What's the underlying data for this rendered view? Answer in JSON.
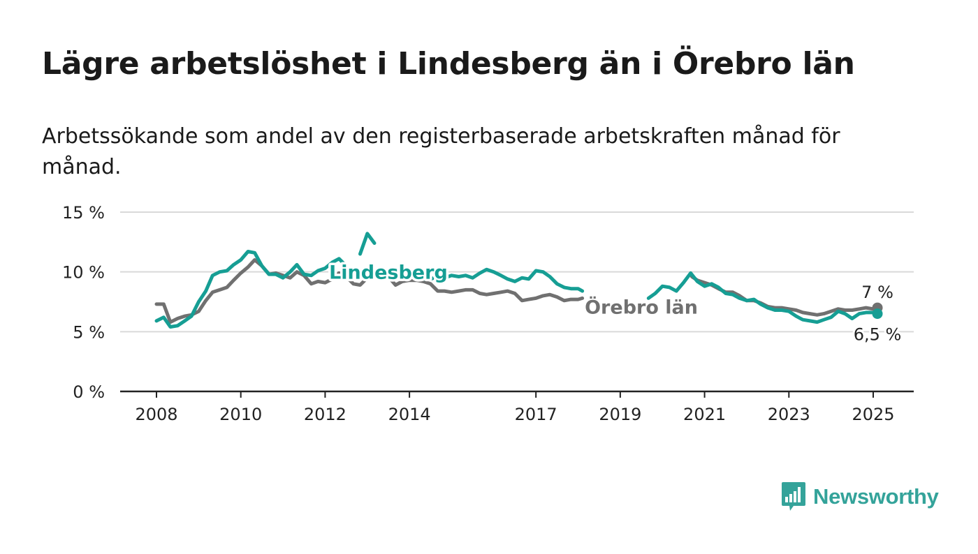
{
  "header": {
    "title": "Lägre arbetslöshet i Lindesberg än i Örebro län",
    "subtitle": "Arbetssökande som andel av den registerbaserade arbetskraften månad för månad."
  },
  "brand": {
    "name": "Newsworthy",
    "icon": "bar-chart-speech-bubble-icon",
    "color": "#34a39a"
  },
  "chart_data": {
    "type": "line",
    "ylim": [
      0,
      15
    ],
    "yticks": [
      0,
      5,
      10,
      15
    ],
    "ytick_labels": [
      "0 %",
      "5 %",
      "10 %",
      "15 %"
    ],
    "xlim": [
      2007.2,
      2026.0
    ],
    "xticks": [
      2008,
      2010,
      2012,
      2014,
      2017,
      2019,
      2021,
      2023,
      2025
    ],
    "xtick_labels": [
      "2008",
      "2010",
      "2012",
      "2014",
      "2017",
      "2019",
      "2021",
      "2023",
      "2025"
    ],
    "grid": true,
    "legend": "direct labels",
    "series": [
      {
        "name": "Örebro län",
        "color": "#707070",
        "end_label": "7 %",
        "segments": [
          [
            [
              2008.0,
              7.3
            ],
            [
              2008.17,
              7.3
            ],
            [
              2008.33,
              5.8
            ],
            [
              2008.5,
              6.1
            ],
            [
              2008.67,
              6.3
            ],
            [
              2008.83,
              6.4
            ],
            [
              2009.0,
              6.7
            ],
            [
              2009.17,
              7.6
            ],
            [
              2009.33,
              8.3
            ],
            [
              2009.5,
              8.5
            ],
            [
              2009.67,
              8.7
            ],
            [
              2009.83,
              9.3
            ],
            [
              2010.0,
              9.9
            ],
            [
              2010.17,
              10.4
            ],
            [
              2010.33,
              11.0
            ],
            [
              2010.5,
              10.5
            ],
            [
              2010.67,
              9.8
            ],
            [
              2010.83,
              9.9
            ],
            [
              2011.0,
              9.7
            ],
            [
              2011.17,
              9.5
            ],
            [
              2011.33,
              10.0
            ],
            [
              2011.5,
              9.7
            ],
            [
              2011.67,
              9.0
            ],
            [
              2011.83,
              9.2
            ],
            [
              2012.0,
              9.1
            ],
            [
              2012.17,
              9.4
            ],
            [
              2012.33,
              9.9
            ],
            [
              2012.5,
              9.6
            ],
            [
              2012.67,
              9.0
            ],
            [
              2012.83,
              8.9
            ],
            [
              2013.0,
              9.5
            ],
            [
              2013.17,
              9.8
            ],
            [
              2013.33,
              9.8
            ],
            [
              2013.5,
              9.6
            ],
            [
              2013.67,
              8.9
            ],
            [
              2013.83,
              9.2
            ],
            [
              2014.0,
              9.3
            ],
            [
              2014.17,
              9.3
            ],
            [
              2014.33,
              9.2
            ],
            [
              2014.5,
              9.0
            ],
            [
              2014.67,
              8.4
            ],
            [
              2014.83,
              8.4
            ],
            [
              2015.0,
              8.3
            ],
            [
              2015.17,
              8.4
            ],
            [
              2015.33,
              8.5
            ],
            [
              2015.5,
              8.5
            ],
            [
              2015.67,
              8.2
            ],
            [
              2015.83,
              8.1
            ],
            [
              2016.0,
              8.2
            ],
            [
              2016.17,
              8.3
            ],
            [
              2016.33,
              8.4
            ],
            [
              2016.5,
              8.2
            ],
            [
              2016.67,
              7.6
            ],
            [
              2016.83,
              7.7
            ],
            [
              2017.0,
              7.8
            ],
            [
              2017.17,
              8.0
            ],
            [
              2017.33,
              8.1
            ],
            [
              2017.5,
              7.9
            ],
            [
              2017.67,
              7.6
            ],
            [
              2017.83,
              7.7
            ],
            [
              2018.0,
              7.7
            ],
            [
              2018.1,
              7.8
            ]
          ],
          [
            [
              2020.7,
              9.6
            ],
            [
              2020.83,
              9.3
            ],
            [
              2021.0,
              9.1
            ],
            [
              2021.17,
              8.9
            ],
            [
              2021.33,
              8.6
            ],
            [
              2021.5,
              8.3
            ],
            [
              2021.67,
              8.3
            ],
            [
              2021.83,
              8.0
            ],
            [
              2022.0,
              7.6
            ],
            [
              2022.17,
              7.6
            ],
            [
              2022.33,
              7.4
            ],
            [
              2022.5,
              7.1
            ],
            [
              2022.67,
              7.0
            ],
            [
              2022.83,
              7.0
            ],
            [
              2023.0,
              6.9
            ],
            [
              2023.17,
              6.8
            ],
            [
              2023.33,
              6.6
            ],
            [
              2023.5,
              6.5
            ],
            [
              2023.67,
              6.4
            ],
            [
              2023.83,
              6.5
            ],
            [
              2024.0,
              6.7
            ],
            [
              2024.17,
              6.9
            ],
            [
              2024.33,
              6.8
            ],
            [
              2024.5,
              6.8
            ],
            [
              2024.67,
              6.9
            ],
            [
              2024.83,
              7.0
            ],
            [
              2025.0,
              6.9
            ],
            [
              2025.1,
              7.0
            ]
          ]
        ]
      },
      {
        "name": "Lindesberg",
        "color": "#169e94",
        "end_label": "6,5 %",
        "segments": [
          [
            [
              2008.0,
              5.9
            ],
            [
              2008.17,
              6.2
            ],
            [
              2008.33,
              5.4
            ],
            [
              2008.5,
              5.5
            ],
            [
              2008.67,
              5.9
            ],
            [
              2008.83,
              6.3
            ],
            [
              2009.0,
              7.5
            ],
            [
              2009.17,
              8.4
            ],
            [
              2009.33,
              9.7
            ],
            [
              2009.5,
              10.0
            ],
            [
              2009.67,
              10.1
            ],
            [
              2009.83,
              10.6
            ],
            [
              2010.0,
              11.0
            ],
            [
              2010.17,
              11.7
            ],
            [
              2010.33,
              11.6
            ],
            [
              2010.5,
              10.5
            ],
            [
              2010.67,
              9.8
            ],
            [
              2010.83,
              9.8
            ],
            [
              2011.0,
              9.5
            ],
            [
              2011.17,
              10.0
            ],
            [
              2011.33,
              10.6
            ],
            [
              2011.5,
              9.8
            ],
            [
              2011.67,
              9.7
            ],
            [
              2011.83,
              10.1
            ],
            [
              2012.0,
              10.3
            ],
            [
              2012.17,
              10.8
            ],
            [
              2012.33,
              11.1
            ],
            [
              2012.5,
              10.5
            ]
          ],
          [
            [
              2012.83,
              11.5
            ],
            [
              2013.0,
              13.2
            ],
            [
              2013.17,
              12.4
            ]
          ],
          [
            [
              2014.33,
              9.4
            ],
            [
              2014.5,
              9.4
            ],
            [
              2014.67,
              9.6
            ],
            [
              2014.83,
              9.5
            ],
            [
              2015.0,
              9.7
            ],
            [
              2015.17,
              9.6
            ],
            [
              2015.33,
              9.7
            ],
            [
              2015.5,
              9.5
            ],
            [
              2015.67,
              9.9
            ],
            [
              2015.83,
              10.2
            ],
            [
              2016.0,
              10.0
            ],
            [
              2016.17,
              9.7
            ],
            [
              2016.33,
              9.4
            ],
            [
              2016.5,
              9.2
            ],
            [
              2016.67,
              9.5
            ],
            [
              2016.83,
              9.4
            ],
            [
              2017.0,
              10.1
            ],
            [
              2017.17,
              10.0
            ],
            [
              2017.33,
              9.6
            ],
            [
              2017.5,
              9.0
            ],
            [
              2017.67,
              8.7
            ],
            [
              2017.83,
              8.6
            ],
            [
              2018.0,
              8.6
            ],
            [
              2018.1,
              8.4
            ]
          ],
          [
            [
              2019.67,
              7.8
            ],
            [
              2019.83,
              8.2
            ],
            [
              2020.0,
              8.8
            ],
            [
              2020.17,
              8.7
            ],
            [
              2020.33,
              8.4
            ],
            [
              2020.5,
              9.1
            ],
            [
              2020.67,
              9.9
            ],
            [
              2020.83,
              9.2
            ],
            [
              2021.0,
              8.8
            ],
            [
              2021.17,
              9.0
            ],
            [
              2021.33,
              8.7
            ],
            [
              2021.5,
              8.2
            ],
            [
              2021.67,
              8.1
            ],
            [
              2021.83,
              7.8
            ],
            [
              2022.0,
              7.6
            ],
            [
              2022.17,
              7.7
            ],
            [
              2022.33,
              7.3
            ],
            [
              2022.5,
              7.0
            ],
            [
              2022.67,
              6.8
            ],
            [
              2022.83,
              6.8
            ],
            [
              2023.0,
              6.7
            ],
            [
              2023.17,
              6.3
            ],
            [
              2023.33,
              6.0
            ],
            [
              2023.5,
              5.9
            ],
            [
              2023.67,
              5.8
            ],
            [
              2023.83,
              6.0
            ],
            [
              2024.0,
              6.2
            ],
            [
              2024.17,
              6.7
            ],
            [
              2024.33,
              6.5
            ],
            [
              2024.5,
              6.1
            ],
            [
              2024.67,
              6.5
            ],
            [
              2024.83,
              6.6
            ],
            [
              2025.0,
              6.6
            ],
            [
              2025.1,
              6.5
            ]
          ]
        ]
      }
    ],
    "annotations": [
      {
        "series": "Lindesberg",
        "text": "Lindesberg",
        "x": 2013.5,
        "y": 10.0
      },
      {
        "series": "Örebro län",
        "text": "Örebro län",
        "x": 2019.5,
        "y": 7.1
      }
    ]
  }
}
